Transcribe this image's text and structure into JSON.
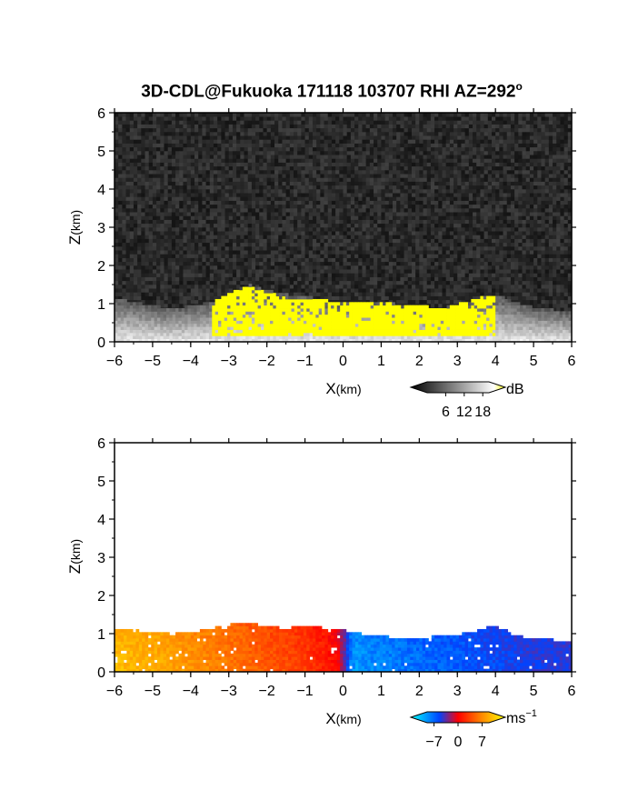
{
  "title": "3D-CDL@Fukuoka 171118 103707 RHI AZ=292",
  "title_sup": "o",
  "chart_data": [
    {
      "type": "heatmap",
      "name": "backscatter",
      "xlabel_main": "X",
      "xlabel_unit": "(km)",
      "ylabel_main": "Z",
      "ylabel_unit": "(km)",
      "xlim": [
        -6,
        6
      ],
      "ylim": [
        0,
        6
      ],
      "x_ticks": [
        -6,
        -5,
        -4,
        -3,
        -2,
        -1,
        0,
        1,
        2,
        3,
        4,
        5,
        6
      ],
      "y_ticks": [
        0,
        1,
        2,
        3,
        4,
        5,
        6
      ],
      "colorbar": {
        "unit": "dB",
        "ticks": [
          6,
          12,
          18
        ],
        "range": [
          0,
          20
        ],
        "colors": [
          "#000000",
          "#ffffff",
          "#ffff00"
        ]
      },
      "background_color": "#222222",
      "echo_top_profile": {
        "x": [
          -6,
          -5.5,
          -5,
          -4.5,
          -4,
          -3.5,
          -3,
          -2.5,
          -2,
          -1.5,
          -1,
          -0.5,
          0,
          0.5,
          1,
          1.5,
          2,
          2.5,
          3,
          3.5,
          4,
          4.5,
          5,
          5.5,
          6
        ],
        "z": [
          1.1,
          1.0,
          0.9,
          0.85,
          0.9,
          1.0,
          1.25,
          1.45,
          1.3,
          1.2,
          1.15,
          1.05,
          1.0,
          1.0,
          0.98,
          0.95,
          0.9,
          0.85,
          0.95,
          1.1,
          1.2,
          1.0,
          0.85,
          0.8,
          0.75
        ]
      },
      "strong_region": {
        "x": [
          -3.5,
          -3,
          -2.5,
          -2,
          -1.5,
          -1,
          -0.5,
          0,
          0.5,
          1,
          1.5,
          2,
          2.5,
          3,
          3.5,
          4
        ],
        "z_top": [
          1.0,
          1.3,
          1.4,
          1.25,
          1.1,
          1.1,
          1.05,
          1.0,
          1.0,
          0.98,
          0.95,
          0.9,
          0.85,
          1.0,
          1.2,
          1.3
        ]
      }
    },
    {
      "type": "heatmap",
      "name": "doppler_velocity",
      "xlabel_main": "X",
      "xlabel_unit": "(km)",
      "ylabel_main": "Z",
      "ylabel_unit": "(km)",
      "xlim": [
        -6,
        6
      ],
      "ylim": [
        0,
        6
      ],
      "x_ticks": [
        -6,
        -5,
        -4,
        -3,
        -2,
        -1,
        0,
        1,
        2,
        3,
        4,
        5,
        6
      ],
      "y_ticks": [
        0,
        1,
        2,
        3,
        4,
        5,
        6
      ],
      "colorbar": {
        "unit": "ms",
        "unit_sup": "−1",
        "ticks": [
          -7,
          0,
          7
        ],
        "range": [
          -9,
          9
        ],
        "colors": [
          "#00ffff",
          "#0044ff",
          "#ff0000",
          "#ff8800",
          "#ffff00"
        ]
      },
      "echo_top_profile": {
        "x": [
          -6,
          -5.5,
          -5,
          -4.5,
          -4,
          -3.5,
          -3,
          -2.5,
          -2,
          -1.5,
          -1,
          -0.5,
          0,
          0.5,
          1,
          1.5,
          2,
          2.5,
          3,
          3.5,
          4,
          4.5,
          5,
          5.5,
          6
        ],
        "z": [
          1.1,
          1.05,
          1.0,
          0.95,
          1.0,
          1.1,
          1.2,
          1.25,
          1.15,
          1.1,
          1.2,
          1.1,
          1.05,
          0.95,
          0.9,
          0.85,
          0.85,
          0.9,
          0.95,
          1.05,
          1.2,
          0.9,
          0.85,
          0.8,
          0.75
        ]
      },
      "velocity_profile": {
        "x": [
          -6,
          -5,
          -4,
          -3,
          -2,
          -1,
          -0.2,
          0.2,
          1,
          2,
          3,
          4,
          5,
          6
        ],
        "v": [
          6.5,
          6.0,
          5.0,
          4.0,
          3.0,
          2.0,
          0.5,
          -6.5,
          -6.0,
          -5.5,
          -5.0,
          -4.5,
          -4.0,
          -4.0
        ]
      }
    }
  ]
}
